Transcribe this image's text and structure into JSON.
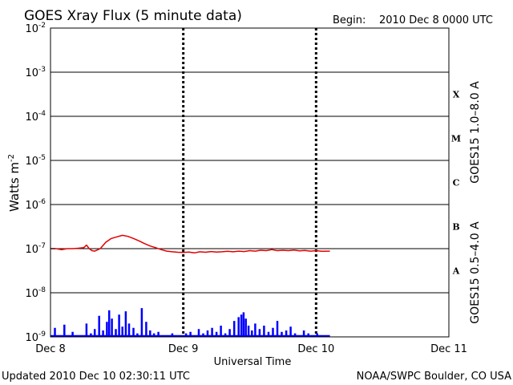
{
  "chart_data": {
    "type": "line",
    "title": "GOES Xray Flux (5 minute data)",
    "begin_label": "Begin:",
    "begin_value": "2010 Dec 8 0000 UTC",
    "ylabel_base": "Watts m",
    "ylabel_exp": "-2",
    "xlabel": "Universal Time",
    "updated": "Updated 2010 Dec 10 02:30:11 UTC",
    "credit": "NOAA/SWPC Boulder, CO USA",
    "yscale": "log",
    "ylim": [
      1e-09,
      0.01
    ],
    "xlim": [
      0,
      72
    ],
    "x_unit": "hours since 2010 Dec 8 0000 UTC",
    "grid": true,
    "y_ticks": [
      {
        "base": "10",
        "exp": "-9",
        "value": 1e-09
      },
      {
        "base": "10",
        "exp": "-8",
        "value": 1e-08
      },
      {
        "base": "10",
        "exp": "-7",
        "value": 1e-07
      },
      {
        "base": "10",
        "exp": "-6",
        "value": 1e-06
      },
      {
        "base": "10",
        "exp": "-5",
        "value": 1e-05
      },
      {
        "base": "10",
        "exp": "-4",
        "value": 0.0001
      },
      {
        "base": "10",
        "exp": "-3",
        "value": 0.001
      },
      {
        "base": "10",
        "exp": "-2",
        "value": 0.01
      }
    ],
    "x_ticks": [
      {
        "label": "Dec 8",
        "x": 0
      },
      {
        "label": "Dec 9",
        "x": 24
      },
      {
        "label": "Dec 10",
        "x": 48
      },
      {
        "label": "Dec 11",
        "x": 72
      }
    ],
    "flare_classes": [
      {
        "label": "A",
        "bottom": 1e-08
      },
      {
        "label": "B",
        "bottom": 1e-07
      },
      {
        "label": "C",
        "bottom": 1e-06
      },
      {
        "label": "M",
        "bottom": 1e-05
      },
      {
        "label": "X",
        "bottom": 0.0001
      }
    ],
    "series": [
      {
        "name": "GOES15 1.0–8.0 A",
        "color": "#e00000",
        "style": "line",
        "x": [
          0,
          1,
          2,
          3,
          4,
          5,
          6,
          6.5,
          7,
          7.5,
          8,
          9,
          10,
          11,
          12,
          13,
          14,
          15,
          16,
          17,
          18,
          19,
          20,
          21,
          22,
          23,
          24,
          25,
          26,
          27,
          28,
          29,
          30,
          31,
          32,
          33,
          34,
          35,
          36,
          37,
          38,
          39,
          40,
          41,
          42,
          43,
          44,
          45,
          46,
          47,
          48,
          49,
          50.5
        ],
        "y": [
          1e-07,
          1e-07,
          9.5e-08,
          1e-07,
          1e-07,
          1.02e-07,
          1.05e-07,
          1.2e-07,
          1e-07,
          9e-08,
          8.8e-08,
          1e-07,
          1.4e-07,
          1.7e-07,
          1.85e-07,
          2e-07,
          1.9e-07,
          1.7e-07,
          1.5e-07,
          1.3e-07,
          1.15e-07,
          1.05e-07,
          9.5e-08,
          8.8e-08,
          8.5e-08,
          8.3e-08,
          8.2e-08,
          8.4e-08,
          8e-08,
          8.5e-08,
          8.3e-08,
          8.6e-08,
          8.4e-08,
          8.5e-08,
          8.7e-08,
          8.5e-08,
          8.8e-08,
          8.6e-08,
          9e-08,
          8.8e-08,
          9.2e-08,
          9e-08,
          9.5e-08,
          9e-08,
          9.2e-08,
          9e-08,
          9.3e-08,
          8.9e-08,
          9.1e-08,
          8.8e-08,
          9e-08,
          8.7e-08,
          8.8e-08
        ]
      },
      {
        "name": "GOES15 0.5–4.0 A",
        "color": "#0000ff",
        "style": "spiky",
        "x": [
          0,
          0.8,
          1.6,
          2.5,
          3.2,
          4,
          5,
          5.7,
          6.5,
          7.3,
          8,
          8.8,
          9.5,
          10.2,
          10.6,
          11.1,
          11.8,
          12.4,
          13,
          13.6,
          14.2,
          15,
          15.7,
          16.5,
          17.3,
          18,
          18.7,
          19.5,
          20.3,
          21,
          22,
          22.8,
          23.6,
          24.5,
          25.3,
          26,
          26.8,
          27.6,
          28.4,
          29.2,
          30,
          30.8,
          31.6,
          32.4,
          33.2,
          34,
          34.5,
          34.9,
          35.3,
          35.8,
          36.4,
          37,
          37.8,
          38.6,
          39.4,
          40.2,
          41,
          41.8,
          42.6,
          43.4,
          44.2,
          45,
          45.8,
          46.6,
          47.4,
          48.2,
          49,
          49.8,
          50.5
        ],
        "y": [
          1e-09,
          1.6e-09,
          1.1e-09,
          1.9e-09,
          1e-09,
          1.3e-09,
          1.1e-09,
          1e-09,
          2e-09,
          1.2e-09,
          1.5e-09,
          3e-09,
          1.4e-09,
          2.2e-09,
          4e-09,
          2.6e-09,
          1.5e-09,
          3.2e-09,
          1.7e-09,
          3.8e-09,
          2e-09,
          1.6e-09,
          1.2e-09,
          4.5e-09,
          2.2e-09,
          1.4e-09,
          1.2e-09,
          1.3e-09,
          1.1e-09,
          1e-09,
          1.2e-09,
          1.1e-09,
          1e-09,
          1.2e-09,
          1.3e-09,
          1.1e-09,
          1.5e-09,
          1.2e-09,
          1.4e-09,
          1.6e-09,
          1.3e-09,
          1.8e-09,
          1.2e-09,
          1.5e-09,
          2.3e-09,
          2.8e-09,
          3.2e-09,
          3.6e-09,
          2.6e-09,
          1.8e-09,
          1.4e-09,
          2e-09,
          1.5e-09,
          1.8e-09,
          1.3e-09,
          1.6e-09,
          2.3e-09,
          1.3e-09,
          1.4e-09,
          1.7e-09,
          1.2e-09,
          1.1e-09,
          1.4e-09,
          1.2e-09,
          1e-09,
          1.2e-09,
          1.1e-09,
          1e-09,
          1e-09
        ]
      }
    ]
  }
}
